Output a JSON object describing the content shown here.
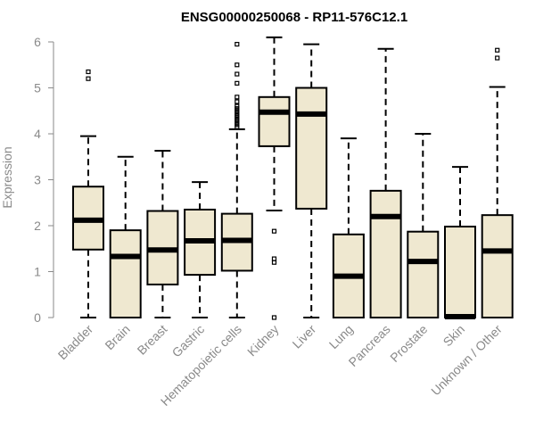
{
  "chart_data": {
    "type": "box",
    "title": "ENSG00000250068 - RP11-576C12.1",
    "xlabel": "",
    "ylabel": "Expression",
    "ylim": [
      0,
      6.2
    ],
    "yticks": [
      0,
      1,
      2,
      3,
      4,
      5,
      6
    ],
    "box_fill": "#efe8d0",
    "box_stroke": "#000000",
    "axis_color": "#8a8a8a",
    "categories": [
      "Bladder",
      "Brain",
      "Breast",
      "Gastric",
      "Hematopoietic cells",
      "Kidney",
      "Liver",
      "Lung",
      "Pancreas",
      "Prostate",
      "Skin",
      "Unknown / Other"
    ],
    "boxes": [
      {
        "min": 0.0,
        "q1": 1.48,
        "median": 2.12,
        "q3": 2.85,
        "max": 3.95,
        "outliers": [
          5.2,
          5.35
        ]
      },
      {
        "min": 0.0,
        "q1": 0.0,
        "median": 1.33,
        "q3": 1.9,
        "max": 3.5,
        "outliers": []
      },
      {
        "min": 0.0,
        "q1": 0.72,
        "median": 1.47,
        "q3": 2.32,
        "max": 3.63,
        "outliers": []
      },
      {
        "min": 0.0,
        "q1": 0.93,
        "median": 1.67,
        "q3": 2.35,
        "max": 2.95,
        "outliers": []
      },
      {
        "min": 0.0,
        "q1": 1.02,
        "median": 1.68,
        "q3": 2.26,
        "max": 4.1,
        "outliers": [
          4.15,
          4.2,
          4.25,
          4.3,
          4.35,
          4.4,
          4.45,
          4.5,
          4.55,
          4.6,
          4.7,
          4.8,
          5.1,
          5.3,
          5.5,
          5.95
        ]
      },
      {
        "min": 2.33,
        "q1": 3.73,
        "median": 4.47,
        "q3": 4.8,
        "max": 6.1,
        "outliers": [
          1.88,
          1.28,
          1.2,
          0.0
        ]
      },
      {
        "min": 0.0,
        "q1": 2.37,
        "median": 4.43,
        "q3": 5.0,
        "max": 5.95,
        "outliers": []
      },
      {
        "min": 0.0,
        "q1": 0.0,
        "median": 0.9,
        "q3": 1.81,
        "max": 3.9,
        "outliers": []
      },
      {
        "min": 0.0,
        "q1": 0.0,
        "median": 2.2,
        "q3": 2.76,
        "max": 5.85,
        "outliers": []
      },
      {
        "min": 0.0,
        "q1": 0.0,
        "median": 1.22,
        "q3": 1.87,
        "max": 4.0,
        "outliers": []
      },
      {
        "min": 0.0,
        "q1": 0.0,
        "median": 0.02,
        "q3": 1.98,
        "max": 3.28,
        "outliers": []
      },
      {
        "min": 0.0,
        "q1": 0.0,
        "median": 1.45,
        "q3": 2.23,
        "max": 5.02,
        "outliers": [
          5.65,
          5.82
        ]
      }
    ]
  }
}
